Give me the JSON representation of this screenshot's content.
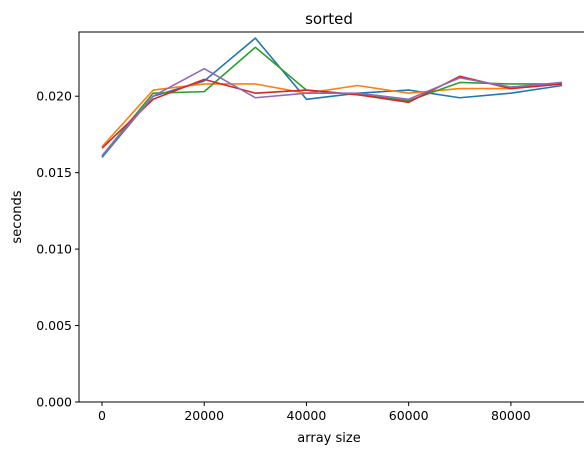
{
  "chart_data": {
    "type": "line",
    "title": "sorted",
    "xlabel": "array size",
    "ylabel": "seconds",
    "xlim": [
      -4500,
      94500
    ],
    "ylim": [
      0,
      0.0242
    ],
    "xticks": [
      0,
      20000,
      40000,
      60000,
      80000
    ],
    "xtick_labels": [
      "0",
      "20000",
      "40000",
      "60000",
      "80000"
    ],
    "yticks": [
      0,
      0.005,
      0.01,
      0.015,
      0.02
    ],
    "ytick_labels": [
      "0.000",
      "0.005",
      "0.010",
      "0.015",
      "0.020"
    ],
    "grid": false,
    "x": [
      0,
      10000,
      20000,
      30000,
      40000,
      50000,
      60000,
      70000,
      80000,
      90000
    ],
    "series": [
      {
        "color": "#1f77b4",
        "values": [
          0.016,
          0.02,
          0.021,
          0.0238,
          0.0198,
          0.0202,
          0.0204,
          0.0199,
          0.0202,
          0.0207
        ]
      },
      {
        "color": "#ff7f0e",
        "values": [
          0.0167,
          0.0204,
          0.0208,
          0.0208,
          0.0202,
          0.0207,
          0.0202,
          0.0205,
          0.0205,
          0.0208
        ]
      },
      {
        "color": "#2ca02c",
        "values": [
          0.0161,
          0.0202,
          0.0203,
          0.0232,
          0.0204,
          0.0201,
          0.0197,
          0.0209,
          0.0208,
          0.0208
        ]
      },
      {
        "color": "#d62728",
        "values": [
          0.0166,
          0.0198,
          0.0211,
          0.0202,
          0.0204,
          0.0201,
          0.0196,
          0.0213,
          0.0205,
          0.0208
        ]
      },
      {
        "color": "#9467bd",
        "values": [
          0.0161,
          0.02,
          0.0218,
          0.0199,
          0.0202,
          0.0202,
          0.0198,
          0.0212,
          0.0206,
          0.0209
        ]
      }
    ]
  }
}
